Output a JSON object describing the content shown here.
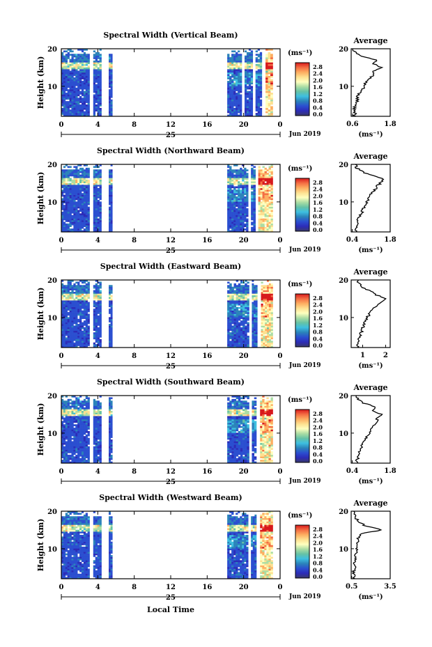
{
  "figure": {
    "xlabel": "Local Time",
    "date_label": "Jun 2019",
    "day_label": "25",
    "ylabel": "Height (km)",
    "avg_title": "Average",
    "avg_xlabel": "(ms⁻¹)",
    "colorbar_title": "(ms⁻¹)",
    "colorbar_ticks": [
      "2.8",
      "2.4",
      "2.0",
      "1.6",
      "1.2",
      "0.8",
      "0.4",
      "0.0"
    ],
    "colorbar_colors": [
      "#d7191c",
      "#f46d43",
      "#fdae61",
      "#fee090",
      "#ffffbf",
      "#abdda4",
      "#66c2a5",
      "#3ebfe0",
      "#2b83ba",
      "#2b4fd0",
      "#2c2cb8",
      "#3a3a6a"
    ]
  },
  "chart_data": [
    {
      "type": "heatmap",
      "title": "Spectral Width (Vertical Beam)",
      "x_ticks": [
        "0",
        "4",
        "8",
        "12",
        "16",
        "20",
        "0"
      ],
      "y_ticks": [
        "20",
        "10"
      ],
      "xlim": [
        0,
        24
      ],
      "ylim": [
        2,
        20
      ],
      "valid_intervals": [
        [
          0,
          3.1
        ],
        [
          3.5,
          4.4
        ],
        [
          5.2,
          5.6
        ],
        [
          18.2,
          19.8
        ],
        [
          20.1,
          21.0
        ],
        [
          21.3,
          22.0
        ],
        [
          22.4,
          23.2
        ]
      ],
      "avg": {
        "x_ticks": [
          "0.6",
          "1.8"
        ],
        "xlim": [
          0.6,
          1.8
        ],
        "y_ticks": [
          "20",
          "10"
        ],
        "profile": [
          [
            2,
            0.7
          ],
          [
            3,
            0.72
          ],
          [
            4,
            0.68
          ],
          [
            5,
            0.75
          ],
          [
            6,
            0.8
          ],
          [
            7,
            0.78
          ],
          [
            8,
            0.85
          ],
          [
            9,
            0.95
          ],
          [
            10,
            1.0
          ],
          [
            11,
            1.05
          ],
          [
            12,
            1.15
          ],
          [
            13,
            1.3
          ],
          [
            14,
            1.25
          ],
          [
            15,
            1.55
          ],
          [
            16,
            1.3
          ],
          [
            17,
            1.4
          ],
          [
            18,
            0.9
          ],
          [
            19,
            0.72
          ],
          [
            20,
            0.65
          ]
        ]
      }
    },
    {
      "type": "heatmap",
      "title": "Spectral Width (Northward Beam)",
      "x_ticks": [
        "0",
        "4",
        "8",
        "12",
        "16",
        "20",
        "0"
      ],
      "y_ticks": [
        "20",
        "10"
      ],
      "xlim": [
        0,
        24
      ],
      "ylim": [
        2,
        20
      ],
      "valid_intervals": [
        [
          0,
          3.1
        ],
        [
          3.5,
          4.4
        ],
        [
          5.2,
          5.6
        ],
        [
          18.2,
          20.5
        ],
        [
          20.8,
          21.3
        ],
        [
          21.6,
          23.2
        ]
      ],
      "avg": {
        "x_ticks": [
          "0.4",
          "1.8"
        ],
        "xlim": [
          0.4,
          1.8
        ],
        "y_ticks": [
          "20",
          "10"
        ],
        "profile": [
          [
            2,
            0.55
          ],
          [
            3,
            0.58
          ],
          [
            4,
            0.62
          ],
          [
            5,
            0.6
          ],
          [
            6,
            0.7
          ],
          [
            7,
            0.78
          ],
          [
            8,
            0.8
          ],
          [
            9,
            0.9
          ],
          [
            10,
            0.95
          ],
          [
            11,
            1.05
          ],
          [
            12,
            1.1
          ],
          [
            13,
            1.25
          ],
          [
            14,
            1.3
          ],
          [
            15,
            1.45
          ],
          [
            16,
            1.55
          ],
          [
            17,
            1.2
          ],
          [
            18,
            0.8
          ],
          [
            19,
            0.6
          ],
          [
            20,
            0.55
          ]
        ]
      }
    },
    {
      "type": "heatmap",
      "title": "Spectral Width (Eastward Beam)",
      "x_ticks": [
        "0",
        "4",
        "8",
        "12",
        "16",
        "20",
        "0"
      ],
      "y_ticks": [
        "20",
        "10"
      ],
      "xlim": [
        0,
        24
      ],
      "ylim": [
        2,
        20
      ],
      "valid_intervals": [
        [
          0,
          3.1
        ],
        [
          3.5,
          4.4
        ],
        [
          5.2,
          5.6
        ],
        [
          18.2,
          20.6
        ],
        [
          20.9,
          21.5
        ],
        [
          21.9,
          23.2
        ]
      ],
      "avg": {
        "x_ticks": [
          "1",
          "2"
        ],
        "xlim": [
          0.5,
          2.2
        ],
        "y_ticks": [
          "20",
          "10"
        ],
        "profile": [
          [
            2,
            0.75
          ],
          [
            3,
            0.8
          ],
          [
            4,
            0.78
          ],
          [
            5,
            0.85
          ],
          [
            6,
            0.95
          ],
          [
            7,
            1.0
          ],
          [
            8,
            1.05
          ],
          [
            9,
            1.1
          ],
          [
            10,
            1.2
          ],
          [
            11,
            1.3
          ],
          [
            12,
            1.4
          ],
          [
            13,
            1.55
          ],
          [
            14,
            1.8
          ],
          [
            15,
            2.0
          ],
          [
            16,
            1.6
          ],
          [
            17,
            1.4
          ],
          [
            18,
            0.95
          ],
          [
            19,
            0.85
          ],
          [
            20,
            0.8
          ]
        ]
      }
    },
    {
      "type": "heatmap",
      "title": "Spectral Width (Southward Beam)",
      "x_ticks": [
        "0",
        "4",
        "8",
        "12",
        "16",
        "20",
        "0"
      ],
      "y_ticks": [
        "20",
        "10"
      ],
      "xlim": [
        0,
        24
      ],
      "ylim": [
        2,
        20
      ],
      "valid_intervals": [
        [
          0,
          3.1
        ],
        [
          3.5,
          4.4
        ],
        [
          5.2,
          5.6
        ],
        [
          18.2,
          20.6
        ],
        [
          20.9,
          21.4
        ],
        [
          21.8,
          23.2
        ]
      ],
      "avg": {
        "x_ticks": [
          "0.4",
          "1.8"
        ],
        "xlim": [
          0.4,
          1.8
        ],
        "y_ticks": [
          "20",
          "10"
        ],
        "profile": [
          [
            2,
            0.6
          ],
          [
            3,
            0.62
          ],
          [
            4,
            0.65
          ],
          [
            5,
            0.7
          ],
          [
            6,
            0.75
          ],
          [
            7,
            0.8
          ],
          [
            8,
            0.85
          ],
          [
            9,
            0.95
          ],
          [
            10,
            1.05
          ],
          [
            11,
            1.1
          ],
          [
            12,
            1.2
          ],
          [
            13,
            1.35
          ],
          [
            14,
            1.3
          ],
          [
            15,
            1.5
          ],
          [
            16,
            1.2
          ],
          [
            17,
            1.3
          ],
          [
            18,
            0.85
          ],
          [
            19,
            0.62
          ],
          [
            20,
            0.58
          ]
        ]
      }
    },
    {
      "type": "heatmap",
      "title": "Spectral Width (Westward Beam)",
      "x_ticks": [
        "0",
        "4",
        "8",
        "12",
        "16",
        "20",
        "0"
      ],
      "y_ticks": [
        "20",
        "10"
      ],
      "xlim": [
        0,
        24
      ],
      "ylim": [
        2,
        20
      ],
      "valid_intervals": [
        [
          0,
          3.1
        ],
        [
          3.5,
          4.4
        ],
        [
          5.2,
          5.6
        ],
        [
          18.2,
          20.5
        ],
        [
          20.8,
          21.4
        ],
        [
          21.8,
          23.2
        ]
      ],
      "avg": {
        "x_ticks": [
          "0.5",
          "3.5"
        ],
        "xlim": [
          0.5,
          3.5
        ],
        "y_ticks": [
          "20",
          "10"
        ],
        "profile": [
          [
            2,
            0.7
          ],
          [
            3,
            0.72
          ],
          [
            4,
            0.7
          ],
          [
            5,
            0.75
          ],
          [
            6,
            0.78
          ],
          [
            7,
            0.8
          ],
          [
            8,
            0.82
          ],
          [
            9,
            0.85
          ],
          [
            10,
            0.9
          ],
          [
            11,
            0.95
          ],
          [
            12,
            1.0
          ],
          [
            13,
            1.05
          ],
          [
            14,
            1.2
          ],
          [
            15,
            2.9
          ],
          [
            16,
            1.6
          ],
          [
            17,
            1.2
          ],
          [
            18,
            0.85
          ],
          [
            19,
            0.75
          ],
          [
            20,
            0.7
          ]
        ]
      }
    }
  ]
}
